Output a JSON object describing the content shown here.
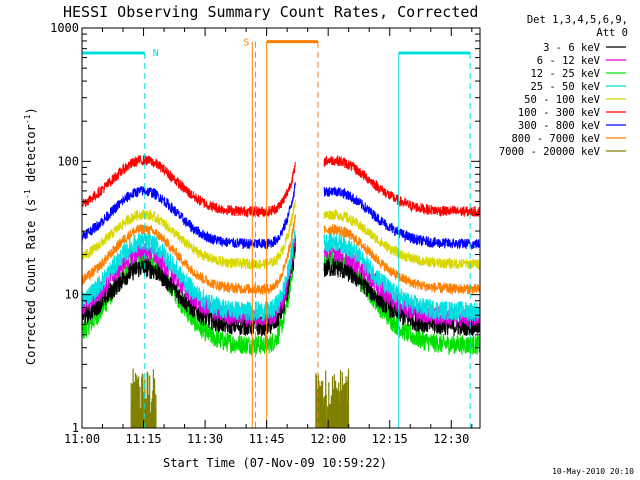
{
  "chart_data": {
    "type": "line",
    "title": "HESSI Observing Summary Count Rates, Corrected",
    "xlabel": "Start Time (07-Nov-09 10:59:22)",
    "ylabel_main": "Corrected Count Rate (s",
    "ylabel_sup1": "-1",
    "ylabel_mid": " detector",
    "ylabel_sup2": "-1",
    "ylabel_end": ")",
    "yscale": "log",
    "ylim": [
      1,
      1000
    ],
    "xlim_minutes": [
      0,
      97
    ],
    "x_ticks": [
      {
        "m": 0,
        "label": "11:00"
      },
      {
        "m": 15,
        "label": "11:15"
      },
      {
        "m": 30,
        "label": "11:30"
      },
      {
        "m": 45,
        "label": "11:45"
      },
      {
        "m": 60,
        "label": "12:00"
      },
      {
        "m": 75,
        "label": "12:15"
      },
      {
        "m": 90,
        "label": "12:30"
      }
    ],
    "y_ticks": [
      {
        "v": 1,
        "label": "1"
      },
      {
        "v": 10,
        "label": "10"
      },
      {
        "v": 100,
        "label": "100"
      },
      {
        "v": 1000,
        "label": "1000"
      }
    ],
    "legend_header": [
      "Det 1,3,4,5,6,9,",
      "Att 0"
    ],
    "legend_placement": "right",
    "series": [
      {
        "name": "3 - 6 keV",
        "color": "#000000",
        "base": 5.8,
        "peak": 16,
        "end": 23
      },
      {
        "name": "6 - 12 keV",
        "color": "#e000e0",
        "base": 6.8,
        "peak": 21,
        "end": 27
      },
      {
        "name": "12 - 25 keV",
        "color": "#00e000",
        "base": 4.2,
        "peak": 18,
        "end": 24
      },
      {
        "name": "25 - 50 keV",
        "color": "#00e0e0",
        "base": 7.5,
        "peak": 25,
        "end": 32
      },
      {
        "name": "50 - 100 keV",
        "color": "#d8d800",
        "base": 17,
        "peak": 40,
        "end": 52
      },
      {
        "name": "100 - 300 keV",
        "color": "#ff0000",
        "base": 42,
        "peak": 102,
        "end": 92
      },
      {
        "name": "300 - 800 keV",
        "color": "#0000ff",
        "base": 24,
        "peak": 60,
        "end": 68
      },
      {
        "name": "800 - 7000 keV",
        "color": "#ff8000",
        "base": 11,
        "peak": 31,
        "end": 40
      },
      {
        "name": "7000 - 20000 keV",
        "color": "#808000",
        "base": 1,
        "peak": 1,
        "end": 1
      }
    ],
    "segments_minutes": [
      [
        0,
        52
      ],
      [
        59,
        97
      ]
    ],
    "peak_minutes": [
      15,
      61
    ],
    "markers": {
      "night_color": "#00e0e0",
      "night_lines": [
        15.3,
        77.2,
        94.6
      ],
      "night_bars": [
        [
          0,
          15.3
        ],
        [
          77.2,
          94.6
        ]
      ],
      "night_solid": [
        77.2
      ],
      "night_label": "N",
      "saa_color": "#ff8000",
      "saa_label": "S",
      "saa_bar": [
        45,
        57.5
      ],
      "saa_solid": [
        41.5,
        45
      ],
      "saa_dashed": [
        42.3,
        57.5
      ]
    },
    "timestamp": "10-May-2010 20:10"
  }
}
